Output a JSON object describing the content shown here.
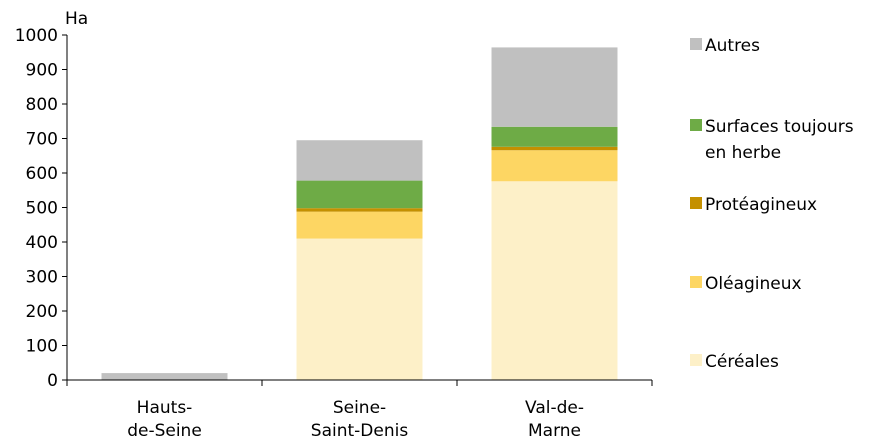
{
  "chart_data": {
    "type": "bar",
    "stacked": true,
    "title": "",
    "ylabel": "Ha",
    "xlabel": "",
    "ylim": [
      0,
      1000
    ],
    "yticks": [
      "0",
      "100",
      "200",
      "300",
      "400",
      "500",
      "600",
      "700",
      "800",
      "900",
      "1000"
    ],
    "categories": [
      [
        "Hauts-",
        "de-Seine"
      ],
      [
        "Seine-",
        "Saint-Denis"
      ],
      [
        "Val-de-",
        "Marne"
      ]
    ],
    "series": [
      {
        "name": "Céréales",
        "color": "#fdf0c8",
        "values": [
          0,
          410,
          576
        ]
      },
      {
        "name": "Oléagineux",
        "color": "#fdd663",
        "values": [
          0,
          78,
          90
        ]
      },
      {
        "name": "Protéagineux",
        "color": "#c49000",
        "values": [
          0,
          10,
          10
        ]
      },
      {
        "name": "Surfaces toujours en herbe",
        "color": "#6eab46",
        "values": [
          0,
          80,
          58
        ]
      },
      {
        "name": "Autres",
        "color": "#c0c0c0",
        "values": [
          20,
          117,
          230
        ]
      }
    ],
    "legend": {
      "placement": "right",
      "order": [
        "Autres",
        "Surfaces toujours en herbe",
        "Protéagineux",
        "Oléagineux",
        "Céréales"
      ],
      "label_lines": {
        "Autres": [
          "Autres"
        ],
        "Surfaces toujours en herbe": [
          "Surfaces toujours",
          "en herbe"
        ],
        "Protéagineux": [
          "Protéagineux"
        ],
        "Oléagineux": [
          "Oléagineux"
        ],
        "Céréales": [
          "Céréales"
        ]
      }
    },
    "grid": false
  }
}
